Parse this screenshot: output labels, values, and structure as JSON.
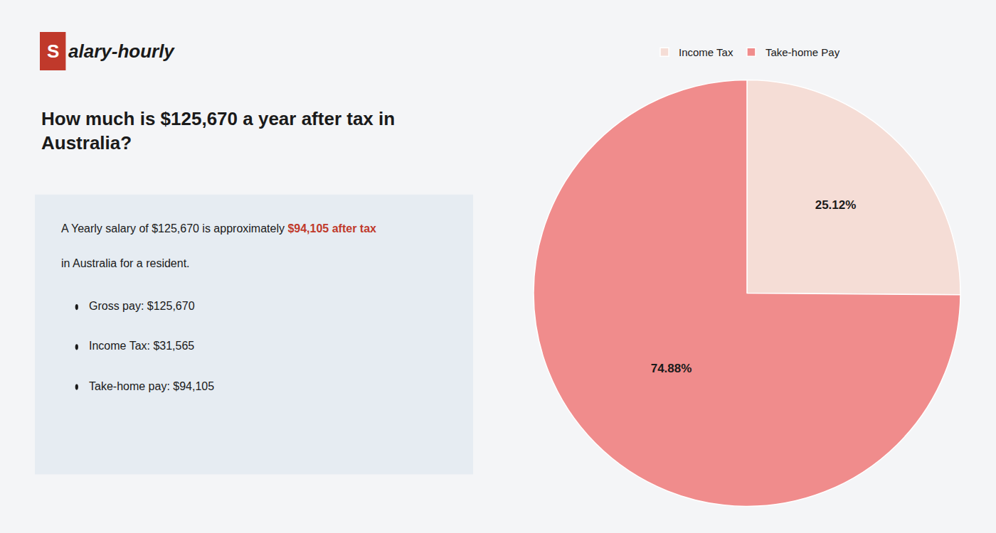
{
  "chart_data": {
    "type": "pie",
    "title": "How much is $125,670 a year after tax in Australia?",
    "categories": [
      "Income Tax",
      "Take-home Pay"
    ],
    "values": [
      25.12,
      74.88
    ],
    "value_labels": [
      "25.12%",
      "74.88%"
    ],
    "colors": [
      "#f5ddd6",
      "#f08c8c"
    ],
    "data_labels": true,
    "legend": "top",
    "annotations": [
      [
        "S",
        "alary-hourly"
      ],
      [
        "A Yearly salary of $125,670 is approximately ",
        "$94,105 after tax"
      ],
      [
        "in Australia for a resident."
      ],
      [
        "Gross pay: $125,670"
      ],
      [
        "Income Tax: $31,565"
      ],
      [
        "Take-home pay: $94,105"
      ]
    ]
  }
}
